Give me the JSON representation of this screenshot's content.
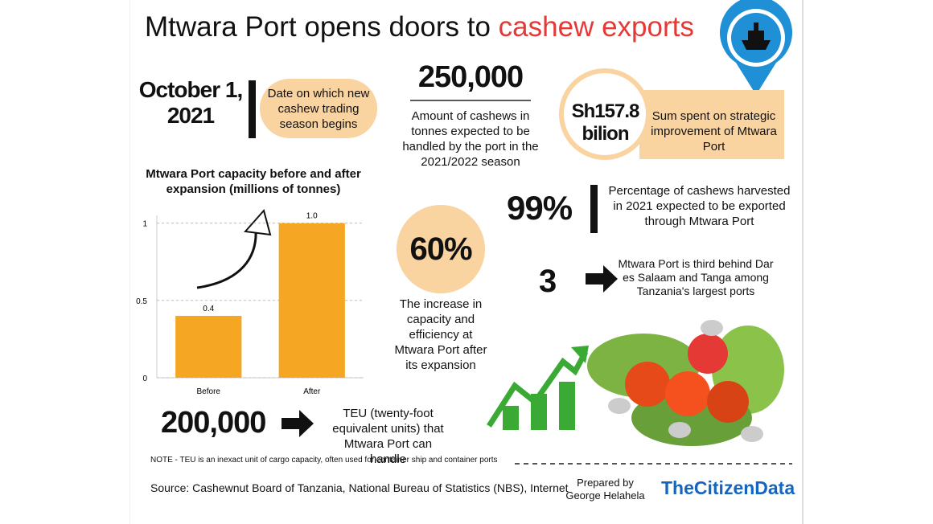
{
  "header": {
    "title_lead": "Mtwara Port opens doors to",
    "title_highlight": "cashew exports"
  },
  "stats": {
    "date": {
      "value": "October 1, 2021",
      "label": "Date on which new cashew trading season begins"
    },
    "tonnes": {
      "value": "250,000",
      "label": "Amount of cashews in tonnes expected to be handled by the port in the 2021/2022 season"
    },
    "sum": {
      "value": "Sh157.8 bilion",
      "label": "Sum spent on strategic improvement of Mtwara Port"
    },
    "share": {
      "value": "99%",
      "label": "Percentage of cashews harvested in 2021 expected to be exported through Mtwara Port"
    },
    "increase": {
      "value": "60%",
      "label": "The increase in capacity and efficiency at Mtwara Port after its expansion"
    },
    "rank": {
      "value": "3",
      "label": "Mtwara Port is third behind Dar es Salaam and Tanga among Tanzania's largest ports"
    },
    "teu": {
      "value": "200,000",
      "label": "TEU (twenty-foot equivalent units) that Mtwara Port can handle"
    }
  },
  "chart_data": {
    "type": "bar",
    "title": "Mtwara Port capacity before and after expansion (millions of tonnes)",
    "categories": [
      "Before",
      "After"
    ],
    "values": [
      0.4,
      1.0
    ],
    "value_labels": [
      "0.4",
      "1.0"
    ],
    "color": "#f5a623",
    "ylim": [
      0,
      1.05
    ],
    "yticks": [
      0,
      0.5,
      1
    ],
    "grid": true
  },
  "footer": {
    "note": "NOTE - TEU is an inexact unit of cargo capacity, often used for container ship and container ports",
    "source": "Source: Cashewnut Board of Tanzania, National Bureau of Statistics (NBS), Internet",
    "prepared_by": "Prepared by George Helahela",
    "brand": "TheCitizenData"
  }
}
